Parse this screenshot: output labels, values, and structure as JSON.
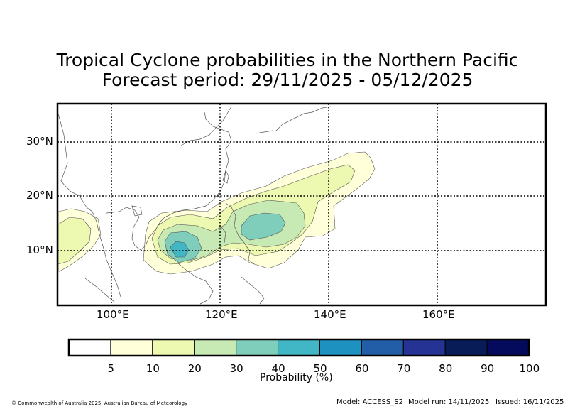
{
  "title_line1": "Tropical Cyclone probabilities in the Northern Pacific",
  "title_line2": "Forecast period: 29/11/2025 - 05/12/2025",
  "lat_labels": [
    "30°N",
    "20°N",
    "10°N"
  ],
  "lon_labels": [
    "100°E",
    "120°E",
    "140°E",
    "160°E"
  ],
  "colorbar": {
    "label": "Probability (%)",
    "ticks": [
      "5",
      "10",
      "20",
      "30",
      "40",
      "50",
      "60",
      "70",
      "80",
      "90",
      "100"
    ],
    "colors": [
      "#ffffff",
      "#ffffd9",
      "#edf8b1",
      "#c7e9b4",
      "#7fcdbb",
      "#41b6c4",
      "#1d91c0",
      "#225ea8",
      "#253494",
      "#081d58",
      "#040a5c"
    ]
  },
  "footer": {
    "copyright": "© Commonwealth of Australia 2025, Australian Bureau of Meteorology",
    "model": "Model: ACCESS_S2",
    "model_run": "Model run: 14/11/2025",
    "issued": "Issued: 16/11/2025"
  }
}
